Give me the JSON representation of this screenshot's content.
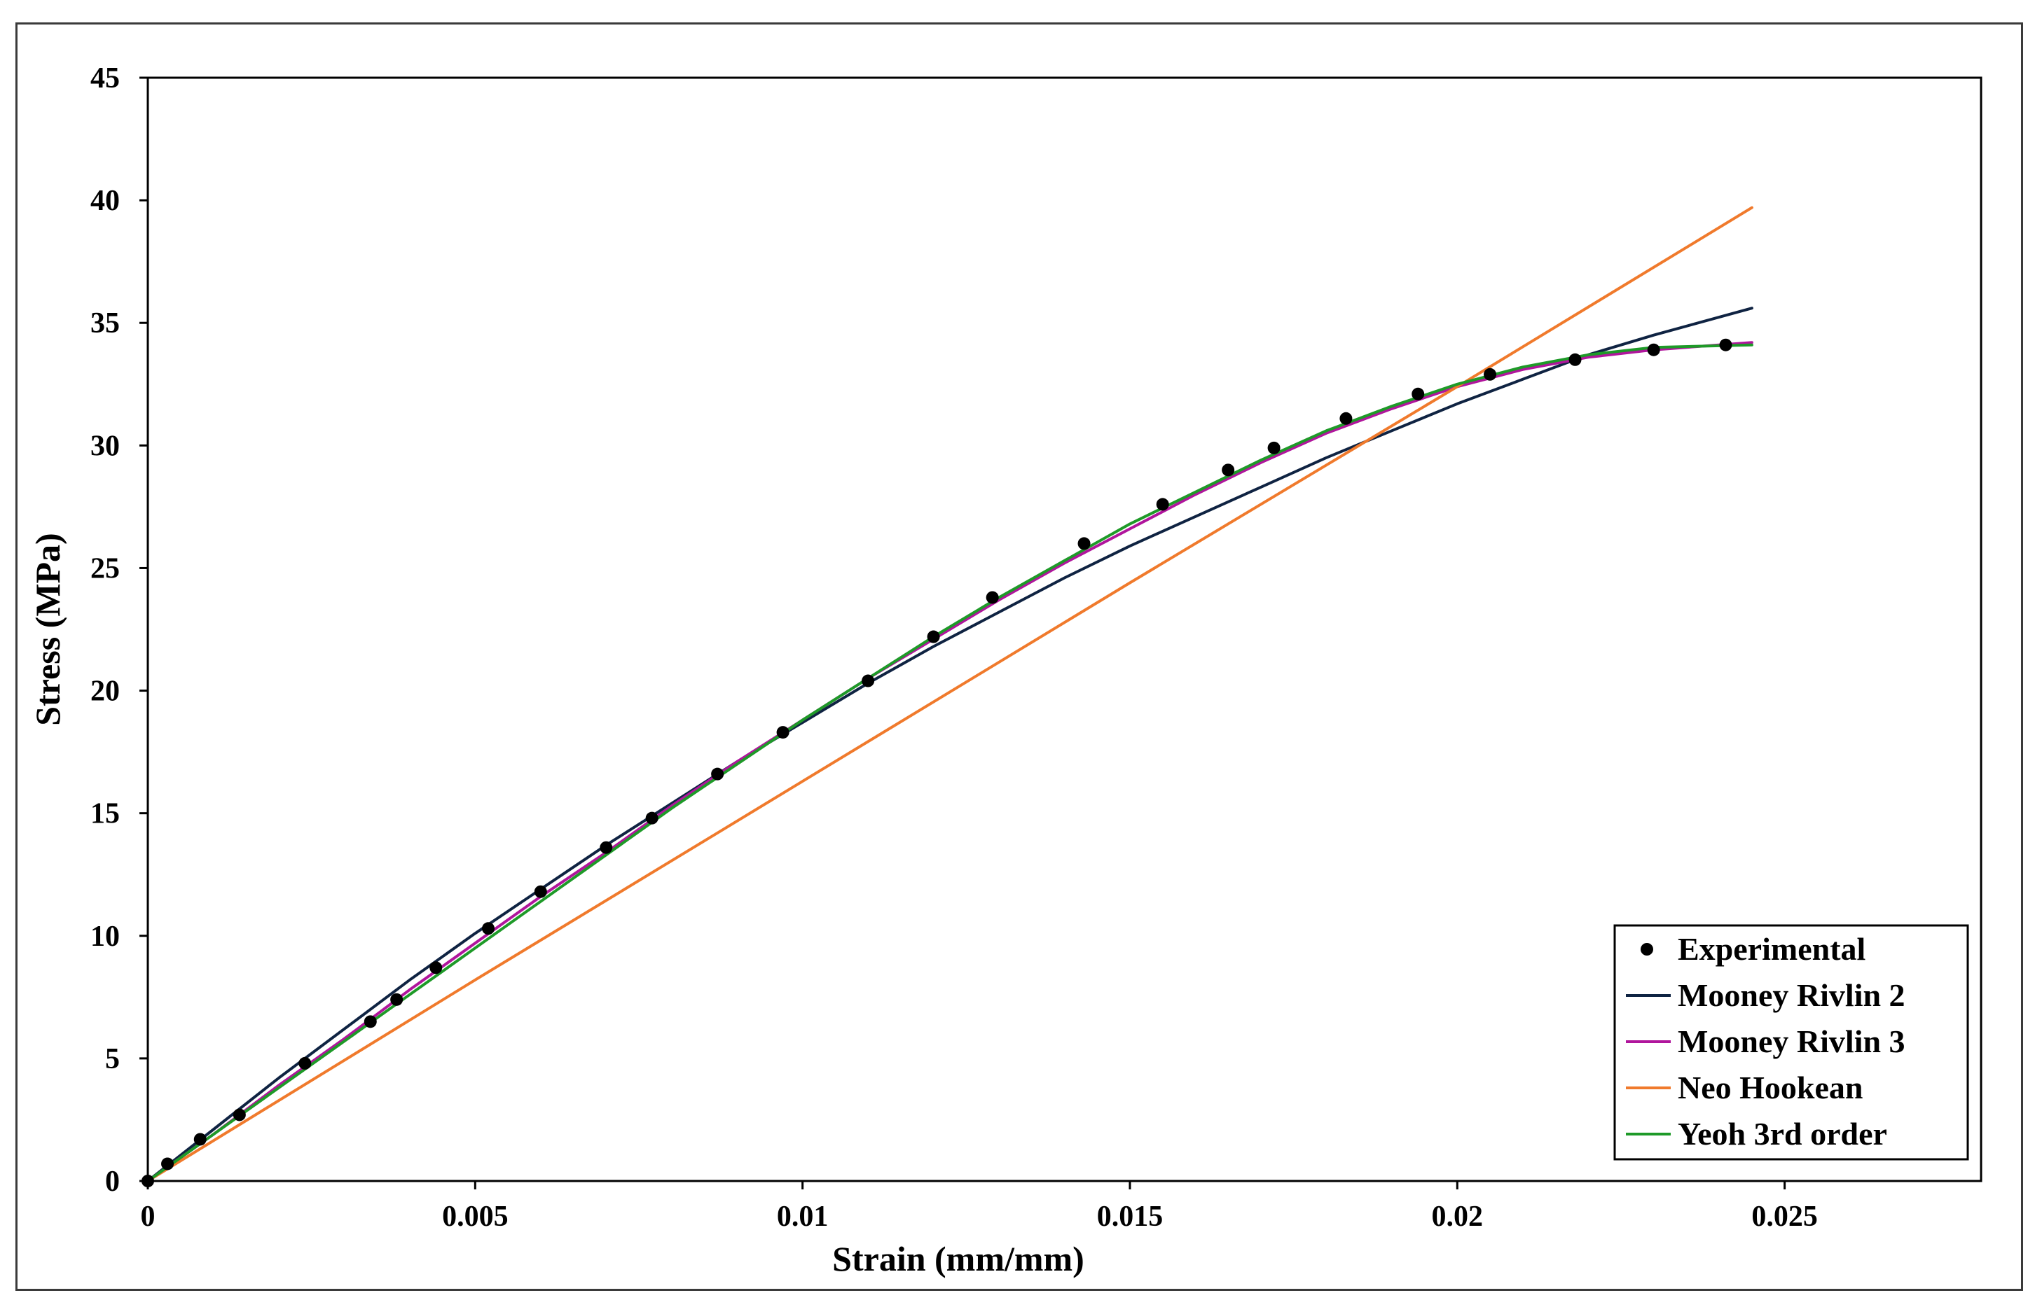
{
  "chart_data": {
    "type": "scatter",
    "xlabel": "Strain (mm/mm)",
    "ylabel": "Stress (MPa)",
    "xlim": [
      0,
      0.028
    ],
    "ylim": [
      0,
      45
    ],
    "x_ticks": [
      0,
      0.005,
      0.01,
      0.015,
      0.02,
      0.025
    ],
    "x_tick_labels": [
      "0",
      "0.005",
      "0.01",
      "0.015",
      "0.02",
      "0.025"
    ],
    "y_ticks": [
      0,
      5,
      10,
      15,
      20,
      25,
      30,
      35,
      40,
      45
    ],
    "y_tick_labels": [
      "0",
      "5",
      "10",
      "15",
      "20",
      "25",
      "30",
      "35",
      "40",
      "45"
    ],
    "grid": false,
    "legend_position": "bottom-right",
    "series": [
      {
        "name": "Experimental",
        "kind": "markers",
        "color": "#000000",
        "x": [
          0,
          0.0003,
          0.0008,
          0.0014,
          0.0024,
          0.0034,
          0.0038,
          0.0044,
          0.0052,
          0.006,
          0.007,
          0.0077,
          0.0087,
          0.0097,
          0.011,
          0.012,
          0.0129,
          0.0143,
          0.0155,
          0.0165,
          0.0172,
          0.0183,
          0.0194,
          0.0205,
          0.0218,
          0.023,
          0.0241
        ],
        "y": [
          0,
          0.7,
          1.7,
          2.7,
          4.8,
          6.5,
          7.4,
          8.7,
          10.3,
          11.8,
          13.6,
          14.8,
          16.6,
          18.3,
          20.4,
          22.2,
          23.8,
          26,
          27.6,
          29,
          29.9,
          31.1,
          32.1,
          32.9,
          33.5,
          33.9,
          34.1
        ]
      },
      {
        "name": "Mooney Rivlin 2",
        "kind": "line",
        "color": "#0f2342",
        "x": [
          0,
          0.001,
          0.002,
          0.003,
          0.004,
          0.005,
          0.006,
          0.007,
          0.008,
          0.009,
          0.01,
          0.011,
          0.012,
          0.013,
          0.014,
          0.015,
          0.016,
          0.017,
          0.018,
          0.019,
          0.02,
          0.021,
          0.022,
          0.023,
          0.0245
        ],
        "y": [
          0,
          2.1,
          4.2,
          6.2,
          8.2,
          10.1,
          11.9,
          13.7,
          15.4,
          17.1,
          18.7,
          20.3,
          21.8,
          23.2,
          24.6,
          25.9,
          27.1,
          28.3,
          29.5,
          30.6,
          31.7,
          32.7,
          33.7,
          34.5,
          35.6
        ]
      },
      {
        "name": "Mooney Rivlin 3",
        "kind": "line",
        "color": "#b0159c",
        "x": [
          0,
          0.001,
          0.002,
          0.003,
          0.004,
          0.005,
          0.006,
          0.007,
          0.008,
          0.009,
          0.01,
          0.011,
          0.012,
          0.013,
          0.014,
          0.015,
          0.016,
          0.017,
          0.018,
          0.019,
          0.02,
          0.021,
          0.022,
          0.023,
          0.0245
        ],
        "y": [
          0,
          1.9,
          3.9,
          5.8,
          7.8,
          9.7,
          11.6,
          13.4,
          15.3,
          17.1,
          18.8,
          20.5,
          22.1,
          23.7,
          25.2,
          26.6,
          28,
          29.3,
          30.5,
          31.5,
          32.4,
          33.1,
          33.6,
          33.9,
          34.2
        ]
      },
      {
        "name": "Neo Hookean",
        "kind": "line",
        "color": "#f07a2c",
        "x": [
          0,
          0.005,
          0.01,
          0.015,
          0.02,
          0.0245
        ],
        "y": [
          0,
          8.2,
          16.3,
          24.4,
          32.4,
          39.7
        ]
      },
      {
        "name": "Yeoh 3rd order",
        "kind": "line",
        "color": "#1e9a28",
        "x": [
          0,
          0.001,
          0.002,
          0.003,
          0.004,
          0.005,
          0.006,
          0.007,
          0.008,
          0.009,
          0.01,
          0.011,
          0.012,
          0.013,
          0.014,
          0.015,
          0.016,
          0.017,
          0.018,
          0.019,
          0.02,
          0.021,
          0.022,
          0.023,
          0.0245
        ],
        "y": [
          0,
          1.9,
          3.8,
          5.7,
          7.6,
          9.5,
          11.4,
          13.3,
          15.2,
          17,
          18.8,
          20.5,
          22.2,
          23.8,
          25.3,
          26.8,
          28.1,
          29.4,
          30.6,
          31.6,
          32.5,
          33.2,
          33.7,
          34,
          34.1
        ]
      }
    ]
  }
}
